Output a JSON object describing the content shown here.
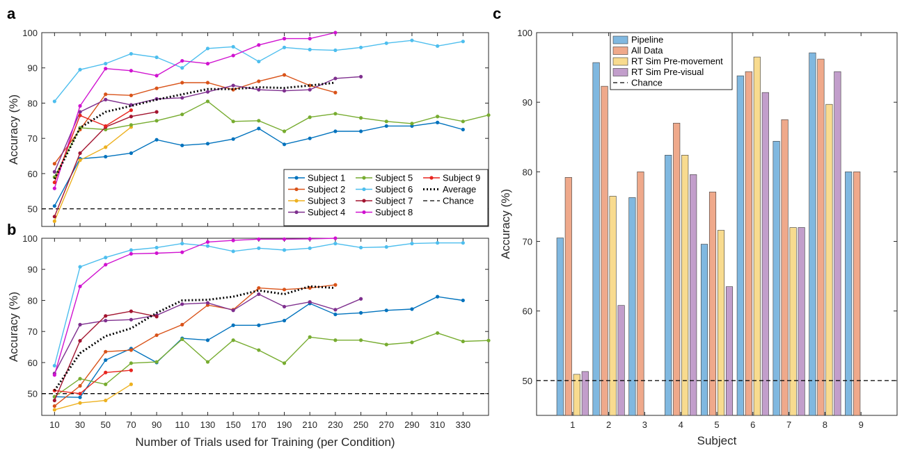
{
  "panels": {
    "a": "a",
    "b": "b",
    "c": "c"
  },
  "chart_data": [
    {
      "id": "a",
      "type": "line",
      "xlabel": "",
      "ylabel": "Accuracy (%)",
      "xlim": [
        0,
        350
      ],
      "ylim": [
        45,
        100
      ],
      "yticks": [
        50,
        60,
        70,
        80,
        90,
        100
      ],
      "xticks": [],
      "chance": 50,
      "series": [
        {
          "name": "Subject 1",
          "color": "#0072BD",
          "x": [
            10,
            30,
            50,
            70,
            90,
            110,
            130,
            150,
            170,
            190,
            210,
            230,
            250,
            270,
            290,
            310,
            330
          ],
          "y": [
            50.8,
            64.2,
            64.8,
            65.8,
            69.6,
            68.0,
            68.5,
            69.8,
            72.8,
            68.3,
            70.0,
            72.0,
            72.0,
            73.5,
            73.5,
            74.5,
            72.5
          ]
        },
        {
          "name": "Subject 2",
          "color": "#D95319",
          "x": [
            10,
            30,
            50,
            70,
            90,
            110,
            130,
            150,
            170,
            190,
            210,
            230
          ],
          "y": [
            62.8,
            72.5,
            82.5,
            82.2,
            84.2,
            85.8,
            85.8,
            83.8,
            86.2,
            88.0,
            85.0,
            83.0
          ]
        },
        {
          "name": "Subject 3",
          "color": "#EDB120",
          "x": [
            10,
            30,
            50,
            70
          ],
          "y": [
            46.5,
            63.8,
            67.5,
            73.2
          ]
        },
        {
          "name": "Subject 4",
          "color": "#7E2F8E",
          "x": [
            10,
            30,
            50,
            70,
            90,
            110,
            130,
            150,
            170,
            190,
            210,
            230,
            250
          ],
          "y": [
            60.5,
            77.5,
            81.0,
            79.5,
            81.2,
            81.5,
            83.2,
            85.0,
            83.8,
            83.5,
            83.8,
            87.0,
            87.5
          ]
        },
        {
          "name": "Subject 5",
          "color": "#77AC30",
          "x": [
            10,
            30,
            50,
            70,
            90,
            110,
            130,
            150,
            170,
            190,
            210,
            230,
            250,
            270,
            290,
            310,
            330,
            350
          ],
          "y": [
            59.0,
            73.0,
            72.5,
            73.8,
            75.0,
            76.8,
            80.5,
            74.8,
            75.0,
            72.0,
            76.0,
            77.0,
            75.8,
            74.8,
            74.2,
            76.2,
            74.8,
            76.6
          ]
        },
        {
          "name": "Subject 6",
          "color": "#4DBEEE",
          "x": [
            10,
            30,
            50,
            70,
            90,
            110,
            130,
            150,
            170,
            190,
            210,
            230,
            250,
            270,
            290,
            310,
            330
          ],
          "y": [
            80.5,
            89.5,
            91.2,
            94.0,
            93.0,
            90.0,
            95.5,
            96.0,
            91.8,
            95.8,
            95.2,
            95.0,
            95.8,
            97.0,
            97.8,
            96.2,
            97.5
          ]
        },
        {
          "name": "Subject 7",
          "color": "#A2142F",
          "x": [
            10,
            30,
            50,
            70,
            90
          ],
          "y": [
            47.8,
            65.8,
            73.2,
            76.2,
            77.5
          ]
        },
        {
          "name": "Subject 8",
          "color": "#D012D0",
          "x": [
            10,
            30,
            50,
            70,
            90,
            110,
            130,
            150,
            170,
            190,
            210,
            230
          ],
          "y": [
            55.8,
            79.2,
            89.8,
            89.2,
            87.8,
            92.0,
            91.2,
            93.5,
            96.5,
            98.3,
            98.3,
            100.0
          ]
        },
        {
          "name": "Subject 9",
          "color": "#E8251F",
          "x": [
            10,
            30,
            50,
            70
          ],
          "y": [
            57.5,
            76.5,
            73.5,
            78.0
          ]
        },
        {
          "name": "Average",
          "color": "#000000",
          "dash": "dotted",
          "x": [
            10,
            30,
            50,
            70,
            90,
            110,
            130,
            150,
            170,
            190,
            210,
            230
          ],
          "y": [
            58.5,
            73.0,
            77.5,
            79.2,
            81.0,
            82.5,
            84.0,
            84.0,
            84.5,
            84.3,
            85.0,
            85.8
          ]
        }
      ],
      "legend": {
        "placement": "lower-right",
        "entries": [
          "Subject 1",
          "Subject 2",
          "Subject 3",
          "Subject 4",
          "Subject 5",
          "Subject 6",
          "Subject 7",
          "Subject 8",
          "Subject 9",
          "Average",
          "Chance"
        ]
      }
    },
    {
      "id": "b",
      "type": "line",
      "xlabel": "Number of Trials used for Training (per Condition)",
      "ylabel": "Accuracy (%)",
      "xlim": [
        0,
        350
      ],
      "ylim": [
        43,
        100
      ],
      "yticks": [
        50,
        60,
        70,
        80,
        90,
        100
      ],
      "xticks": [
        10,
        30,
        50,
        70,
        90,
        110,
        130,
        150,
        170,
        190,
        210,
        230,
        250,
        270,
        290,
        310,
        330
      ],
      "chance": 50,
      "series": [
        {
          "name": "Subject 1",
          "color": "#0072BD",
          "x": [
            10,
            30,
            50,
            70,
            90,
            110,
            130,
            150,
            170,
            190,
            210,
            230,
            250,
            270,
            290,
            310,
            330
          ],
          "y": [
            49.0,
            48.8,
            60.8,
            64.5,
            60.0,
            67.8,
            67.2,
            72.0,
            72.0,
            73.5,
            79.0,
            75.5,
            76.0,
            76.8,
            77.2,
            81.2,
            80.0
          ]
        },
        {
          "name": "Subject 2",
          "color": "#D95319",
          "x": [
            10,
            30,
            50,
            70,
            90,
            110,
            130,
            150,
            170,
            190,
            210,
            230
          ],
          "y": [
            46.0,
            52.5,
            63.5,
            64.0,
            68.8,
            72.2,
            78.5,
            77.0,
            84.0,
            83.5,
            84.0,
            85.0
          ]
        },
        {
          "name": "Subject 3",
          "color": "#EDB120",
          "x": [
            10,
            30,
            50,
            70
          ],
          "y": [
            44.8,
            47.0,
            47.8,
            53.0
          ]
        },
        {
          "name": "Subject 4",
          "color": "#7E2F8E",
          "x": [
            10,
            30,
            50,
            70,
            90,
            110,
            130,
            150,
            170,
            190,
            210,
            230,
            250
          ],
          "y": [
            56.5,
            72.2,
            73.5,
            73.8,
            75.2,
            78.8,
            79.2,
            76.8,
            82.0,
            78.0,
            79.5,
            77.0,
            80.5
          ]
        },
        {
          "name": "Subject 5",
          "color": "#77AC30",
          "x": [
            10,
            30,
            50,
            70,
            90,
            110,
            130,
            150,
            170,
            190,
            210,
            230,
            250,
            270,
            290,
            310,
            330,
            350
          ],
          "y": [
            49.0,
            54.8,
            53.0,
            59.8,
            60.2,
            67.5,
            60.2,
            67.2,
            64.0,
            59.8,
            68.2,
            67.2,
            67.2,
            65.8,
            66.5,
            69.5,
            66.8,
            67.1
          ]
        },
        {
          "name": "Subject 6",
          "color": "#4DBEEE",
          "x": [
            10,
            30,
            50,
            70,
            90,
            110,
            130,
            150,
            170,
            190,
            210,
            230,
            250,
            270,
            290,
            310,
            330
          ],
          "y": [
            59.0,
            90.8,
            93.8,
            96.2,
            97.0,
            98.3,
            97.5,
            95.8,
            96.8,
            96.2,
            96.8,
            98.3,
            97.0,
            97.2,
            98.3,
            98.5,
            98.5
          ]
        },
        {
          "name": "Subject 7",
          "color": "#A2142F",
          "x": [
            10,
            30,
            50,
            70,
            90
          ],
          "y": [
            47.8,
            67.0,
            75.0,
            76.5,
            74.8
          ]
        },
        {
          "name": "Subject 8",
          "color": "#D012D0",
          "x": [
            10,
            30,
            50,
            70,
            90,
            110,
            130,
            150,
            170,
            190,
            210,
            230
          ],
          "y": [
            56.0,
            84.5,
            91.5,
            95.0,
            95.2,
            95.5,
            98.8,
            99.3,
            99.7,
            99.7,
            99.8,
            100.0
          ]
        },
        {
          "name": "Subject 9",
          "color": "#E8251F",
          "x": [
            10,
            30,
            50,
            70
          ],
          "y": [
            51.0,
            50.0,
            56.8,
            57.5
          ]
        },
        {
          "name": "Average",
          "color": "#000000",
          "dash": "dotted",
          "x": [
            10,
            30,
            50,
            70,
            90,
            110,
            130,
            150,
            170,
            190,
            210,
            230
          ],
          "y": [
            51.0,
            63.0,
            68.5,
            71.0,
            76.0,
            80.0,
            80.2,
            81.2,
            83.2,
            82.0,
            84.5,
            84.0
          ]
        }
      ]
    },
    {
      "id": "c",
      "type": "bar",
      "xlabel": "Subject",
      "ylabel": "Accuracy (%)",
      "ylim": [
        45,
        100
      ],
      "yticks": [
        50,
        60,
        70,
        80,
        90,
        100
      ],
      "categories": [
        "1",
        "2",
        "3",
        "4",
        "5",
        "6",
        "7",
        "8",
        "9"
      ],
      "chance": 50,
      "series": [
        {
          "name": "Pipeline",
          "color": "#80B8E0",
          "values": [
            70.5,
            95.7,
            76.3,
            82.4,
            69.6,
            93.8,
            84.4,
            97.1,
            80.0
          ]
        },
        {
          "name": "All Data",
          "color": "#EFA98B",
          "values": [
            79.2,
            92.3,
            80.0,
            87.0,
            77.1,
            94.4,
            87.5,
            96.2,
            80.0
          ]
        },
        {
          "name": "RT Sim Pre-movement",
          "color": "#F8DB8F",
          "values": [
            50.9,
            76.5,
            null,
            82.4,
            71.6,
            96.5,
            72.0,
            89.7,
            null
          ]
        },
        {
          "name": "RT Sim Pre-visual",
          "color": "#C29ECB",
          "values": [
            51.3,
            60.8,
            null,
            79.6,
            63.5,
            91.4,
            72.0,
            94.4,
            null
          ]
        }
      ],
      "legend": {
        "placement": "top-left",
        "entries": [
          "Pipeline",
          "All Data",
          "RT Sim Pre-movement",
          "RT Sim Pre-visual",
          "Chance"
        ]
      }
    }
  ]
}
